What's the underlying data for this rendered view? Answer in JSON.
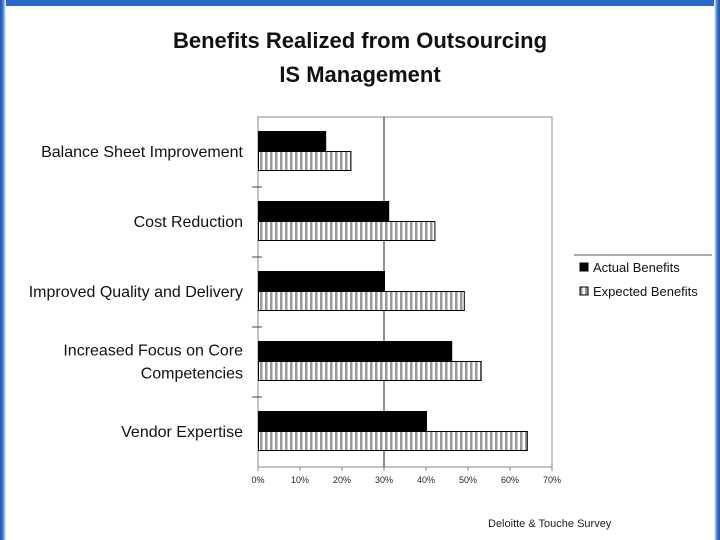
{
  "chart_data": {
    "type": "bar",
    "orientation": "horizontal",
    "title_lines": [
      "Benefits Realized from Outsourcing",
      "IS Management"
    ],
    "categories": [
      [
        "Balance Sheet Improvement"
      ],
      [
        "Cost Reduction"
      ],
      [
        "Improved Quality and Delivery"
      ],
      [
        "Increased Focus on Core",
        "Competencies"
      ],
      [
        "Vendor Expertise"
      ]
    ],
    "series": [
      {
        "name": "Actual Benefits",
        "color": "#000000",
        "pattern": "solid",
        "values": [
          16,
          31,
          30,
          46,
          40
        ]
      },
      {
        "name": "Expected Benefits",
        "color": "#9a9a9a",
        "pattern": "vertical-stripes",
        "values": [
          22,
          42,
          49,
          53,
          64
        ]
      }
    ],
    "x_ticks": [
      "0%",
      "10%",
      "20%",
      "30%",
      "40%",
      "50%",
      "60%",
      "70%"
    ],
    "xlim": [
      0,
      70
    ],
    "reference_line": 30,
    "legend_position": "right",
    "source": "Deloitte & Touche Survey"
  }
}
